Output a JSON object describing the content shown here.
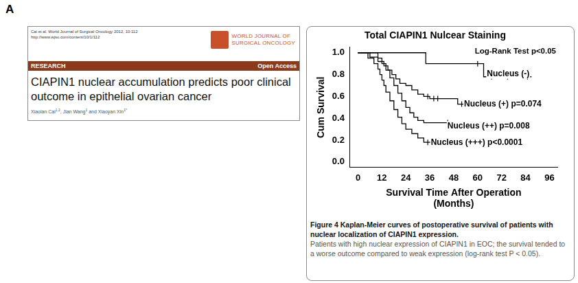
{
  "panel_label": "A",
  "paper": {
    "header": [
      "Cai et al. World Journal of Surgical Oncology 2012, 10:112",
      "http://www.wjso.com/content/10/1/112"
    ],
    "journal": [
      "WORLD JOURNAL OF",
      "SURGICAL ONCOLOGY"
    ],
    "section": "RESEARCH",
    "access": "Open Access",
    "title": "CIAPIN1 nuclear accumulation predicts poor clinical outcome in epithelial ovarian cancer",
    "authors": [
      {
        "text": "Xiaolan Cai",
        "sup": "1,2"
      },
      {
        "text": ", Jian Wang",
        "sup": "1"
      },
      {
        "text": " and Xiaoyan Xin",
        "sup": "1*"
      }
    ]
  },
  "chart_data": {
    "type": "line",
    "line_style": "step",
    "title": "Total CIAPIN1 Nulcear Staining",
    "annotation": "Log-Rank Test p<0.05",
    "xlabel": [
      "Survival Time After Operation",
      "(Months)"
    ],
    "ylabel": "Cum Survival",
    "xlim": [
      -4,
      100
    ],
    "xticks": [
      0,
      12,
      24,
      36,
      48,
      60,
      72,
      84,
      96
    ],
    "ylim": [
      -0.05,
      1.05
    ],
    "yticks": [
      {
        "value": 0,
        "label": "0.0"
      },
      {
        "value": 0.2,
        "label": "0.2"
      },
      {
        "value": 0.4,
        "label": "0.4"
      },
      {
        "value": 0.6,
        "label": "0.6"
      },
      {
        "value": 0.8,
        "label": "0.8"
      },
      {
        "value": 1,
        "label": "1.0"
      }
    ],
    "grid": false,
    "series": [
      {
        "name": "Nucleus (-)",
        "p_value": "",
        "color": "#000000",
        "x": [
          0,
          34,
          63,
          87
        ],
        "values": [
          1.0,
          0.9,
          0.78,
          0.78
        ],
        "censored": [
          60,
          67,
          75,
          85
        ]
      },
      {
        "name": "Nucleus (+)",
        "p_value": "p=0.074",
        "color": "#000000",
        "x": [
          0,
          6,
          10,
          13,
          15,
          17,
          19,
          21,
          24,
          27,
          30,
          33,
          36,
          50,
          62
        ],
        "values": [
          1.0,
          0.96,
          0.92,
          0.88,
          0.84,
          0.8,
          0.76,
          0.72,
          0.7,
          0.66,
          0.62,
          0.6,
          0.58,
          0.53,
          0.53
        ],
        "censored": [
          35,
          38,
          40,
          52,
          55,
          58,
          60
        ]
      },
      {
        "name": "Nucleus (++)",
        "p_value": "p=0.008",
        "color": "#000000",
        "x": [
          0,
          10,
          12,
          14,
          16,
          18,
          20,
          22,
          24,
          26,
          28,
          30,
          33,
          50,
          70
        ],
        "values": [
          1.0,
          0.95,
          0.9,
          0.84,
          0.77,
          0.7,
          0.63,
          0.56,
          0.5,
          0.45,
          0.41,
          0.38,
          0.36,
          0.33,
          0.33
        ],
        "censored": [
          45,
          55,
          60,
          65,
          68
        ]
      },
      {
        "name": "Nucleus (+++)",
        "p_value": "p<0.0001",
        "color": "#000000",
        "x": [
          0,
          5,
          8,
          10,
          11,
          12,
          13,
          14,
          16,
          18,
          20,
          22,
          24,
          27,
          30,
          33,
          45
        ],
        "values": [
          1.0,
          0.95,
          0.9,
          0.85,
          0.8,
          0.75,
          0.7,
          0.64,
          0.56,
          0.48,
          0.41,
          0.35,
          0.3,
          0.26,
          0.22,
          0.18,
          0.18
        ],
        "censored": [
          35,
          38,
          42,
          44
        ]
      }
    ]
  },
  "caption": {
    "bold": "Figure 4 Kaplan-Meier curves of postoperative survival of patients with nuclear localization of CIAPIN1 expression.",
    "text": "Patients with high nuclear expression of CIAPIN1 in EOC; the survival tended to a worse outcome compared to weak expression (log-rank test P < 0.05)."
  }
}
